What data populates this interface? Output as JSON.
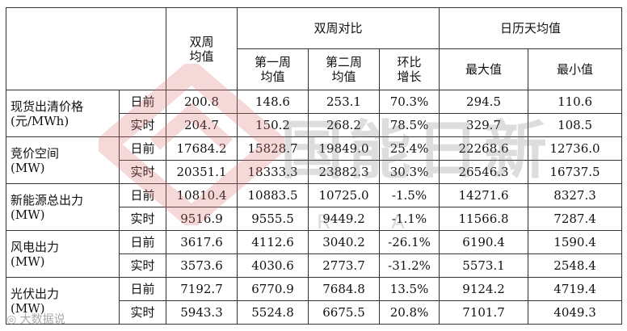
{
  "header": {
    "biweekly_avg": "双周\n均值",
    "biweekly_compare": "双周对比",
    "week1_avg": "第一周\n均值",
    "week2_avg": "第二周\n均值",
    "ratio_growth": "环比\n增长",
    "calendar_daily_avg": "日历天均值",
    "max": "最大值",
    "min": "最小值"
  },
  "groups": [
    {
      "metric": "现货出清价格\n(元/MWh)",
      "rows": [
        {
          "type": "日前",
          "values": [
            "200.8",
            "148.6",
            "253.1",
            "70.3%",
            "294.5",
            "110.6"
          ]
        },
        {
          "type": "实时",
          "values": [
            "204.7",
            "150.2",
            "268.2",
            "78.5%",
            "329.7",
            "108.5"
          ]
        }
      ]
    },
    {
      "metric": "竞价空间\n(MW)",
      "rows": [
        {
          "type": "日前",
          "values": [
            "17684.2",
            "15828.7",
            "19849.0",
            "25.4%",
            "22268.6",
            "12736.0"
          ]
        },
        {
          "type": "实时",
          "values": [
            "20351.1",
            "18333.3",
            "23882.3",
            "30.3%",
            "26546.3",
            "16737.5"
          ]
        }
      ]
    },
    {
      "metric": "新能源总出力\n(MW)",
      "rows": [
        {
          "type": "日前",
          "values": [
            "10810.4",
            "10883.5",
            "10725.0",
            "-1.5%",
            "14271.6",
            "8327.3"
          ]
        },
        {
          "type": "实时",
          "values": [
            "9516.9",
            "9555.5",
            "9449.2",
            "-1.1%",
            "11566.8",
            "7287.4"
          ]
        }
      ]
    },
    {
      "metric": "风电出力\n(MW)",
      "rows": [
        {
          "type": "日前",
          "values": [
            "3617.6",
            "4112.6",
            "3040.2",
            "-26.1%",
            "6190.4",
            "1590.4"
          ]
        },
        {
          "type": "实时",
          "values": [
            "3573.6",
            "4030.6",
            "2773.7",
            "-31.2%",
            "5573.1",
            "2548.4"
          ]
        }
      ]
    },
    {
      "metric": "光伏出力\n(MW)",
      "rows": [
        {
          "type": "日前",
          "values": [
            "7192.7",
            "6770.9",
            "7684.8",
            "13.5%",
            "9124.2",
            "4719.4"
          ]
        },
        {
          "type": "实时",
          "values": [
            "5943.3",
            "5524.8",
            "6675.5",
            "20.8%",
            "7101.7",
            "4049.3"
          ]
        }
      ]
    }
  ],
  "watermark": {
    "logo_text": "国能日新",
    "sub_text": "R A",
    "source": "大数据说"
  },
  "colors": {
    "border": "#333333",
    "watermark_red": "#e8a0a0",
    "watermark_gray": "#9a9a9a"
  }
}
